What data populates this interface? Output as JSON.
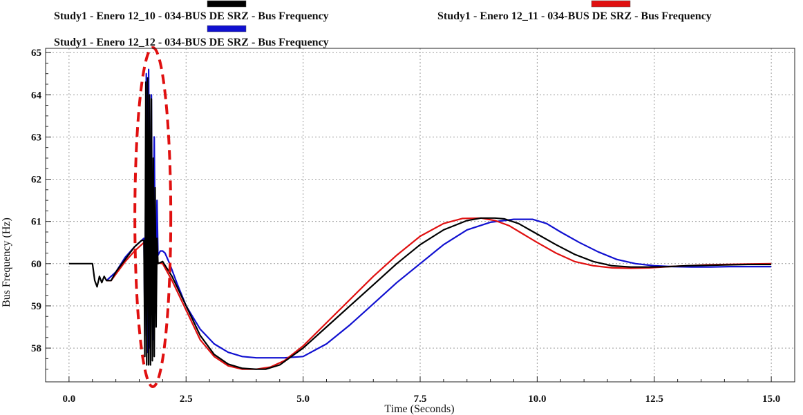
{
  "chart_data": {
    "type": "line",
    "title": "",
    "xlabel": "Time (Seconds)",
    "ylabel": "Bus Frequency (Hz)",
    "xlim": [
      -0.5,
      15.5
    ],
    "ylim": [
      57.2,
      65.1
    ],
    "xticks": [
      0.0,
      2.5,
      5.0,
      7.5,
      10.0,
      12.5,
      15.0
    ],
    "xtick_labels": [
      "0.0",
      "2.5",
      "5.0",
      "7.5",
      "10.0",
      "12.5",
      "15.0"
    ],
    "yticks": [
      58,
      59,
      60,
      61,
      62,
      63,
      64,
      65
    ],
    "ytick_labels": [
      "58",
      "59",
      "60",
      "61",
      "62",
      "63",
      "64",
      "65"
    ],
    "grid": true,
    "legend_position": "top",
    "annotation": "red dashed ellipse around oscillation region (approx. 1.6–1.95 s)",
    "series": [
      {
        "name": "Study1 - Enero 12_10 - 034-BUS DE SRZ - Bus Frequency",
        "color": "#000000",
        "x": [
          0.0,
          0.5,
          0.55,
          0.6,
          0.65,
          0.7,
          0.75,
          0.8,
          0.9,
          1.0,
          1.2,
          1.4,
          1.55,
          1.6,
          1.62,
          1.64,
          1.66,
          1.68,
          1.7,
          1.72,
          1.74,
          1.76,
          1.78,
          1.8,
          1.82,
          1.84,
          1.86,
          1.88,
          1.9,
          2.0,
          2.2,
          2.5,
          2.8,
          3.1,
          3.4,
          3.7,
          4.0,
          4.2,
          4.5,
          5.0,
          5.5,
          6.0,
          6.5,
          7.0,
          7.5,
          8.0,
          8.5,
          8.8,
          9.1,
          9.3,
          9.6,
          10.0,
          10.4,
          10.8,
          11.2,
          11.6,
          12.0,
          12.4,
          12.8,
          13.2,
          13.6,
          14.0,
          14.5,
          15.0
        ],
        "y": [
          60.0,
          60.0,
          59.6,
          59.45,
          59.7,
          59.55,
          59.7,
          59.6,
          59.6,
          59.8,
          60.1,
          60.4,
          60.55,
          60.55,
          57.8,
          64.3,
          57.6,
          64.4,
          57.6,
          64.0,
          57.6,
          63.9,
          57.7,
          62.5,
          57.8,
          61.8,
          58.5,
          60.6,
          60.0,
          60.05,
          59.7,
          59.0,
          58.3,
          57.85,
          57.62,
          57.52,
          57.5,
          57.5,
          57.6,
          58.0,
          58.5,
          59.0,
          59.5,
          60.0,
          60.45,
          60.8,
          61.02,
          61.08,
          61.08,
          61.06,
          60.95,
          60.7,
          60.45,
          60.22,
          60.05,
          59.95,
          59.92,
          59.92,
          59.93,
          59.95,
          59.96,
          59.97,
          59.98,
          59.98
        ]
      },
      {
        "name": "Study1 - Enero 12_11 - 034-BUS DE SRZ - Bus Frequency",
        "color": "#e01010",
        "x": [
          0.8,
          0.9,
          1.0,
          1.2,
          1.4,
          1.55,
          1.6,
          1.65,
          1.75,
          1.85,
          1.9,
          2.0,
          2.2,
          2.5,
          2.8,
          3.1,
          3.4,
          3.7,
          4.0,
          4.3,
          4.6,
          5.0,
          5.5,
          6.0,
          6.5,
          7.0,
          7.5,
          8.0,
          8.4,
          8.8,
          9.1,
          9.4,
          9.7,
          10.0,
          10.4,
          10.8,
          11.2,
          11.6,
          12.0,
          12.4,
          12.8,
          13.2,
          13.6,
          14.0,
          14.5,
          15.0
        ],
        "y": [
          59.6,
          59.6,
          59.75,
          60.05,
          60.3,
          60.45,
          60.5,
          60.4,
          60.0,
          60.05,
          60.02,
          60.0,
          59.6,
          58.9,
          58.2,
          57.8,
          57.58,
          57.5,
          57.5,
          57.55,
          57.7,
          58.05,
          58.6,
          59.15,
          59.7,
          60.2,
          60.65,
          60.95,
          61.07,
          61.08,
          61.02,
          60.9,
          60.7,
          60.5,
          60.25,
          60.05,
          59.95,
          59.9,
          59.89,
          59.9,
          59.93,
          59.95,
          59.97,
          59.98,
          59.99,
          60.0
        ]
      },
      {
        "name": "Study1 - Enero 12_12 - 034-BUS DE SRZ - Bus Frequency",
        "color": "#1010d0",
        "x": [
          0.8,
          1.0,
          1.2,
          1.4,
          1.5,
          1.6,
          1.62,
          1.65,
          1.68,
          1.7,
          1.73,
          1.76,
          1.79,
          1.82,
          1.85,
          1.88,
          1.9,
          1.95,
          2.0,
          2.05,
          2.15,
          2.3,
          2.5,
          2.8,
          3.1,
          3.4,
          3.7,
          4.0,
          4.3,
          4.6,
          5.0,
          5.5,
          6.0,
          6.5,
          7.0,
          7.5,
          8.0,
          8.5,
          9.0,
          9.5,
          9.9,
          10.2,
          10.5,
          10.9,
          11.3,
          11.7,
          12.1,
          12.5,
          12.9,
          13.3,
          13.7,
          14.1,
          14.5,
          15.0
        ],
        "y": [
          59.6,
          59.8,
          60.15,
          60.4,
          60.5,
          60.6,
          58.3,
          64.5,
          57.9,
          64.6,
          58.0,
          64.0,
          58.2,
          63.0,
          59.0,
          61.5,
          60.2,
          60.3,
          60.3,
          60.25,
          60.0,
          59.55,
          59.0,
          58.45,
          58.1,
          57.9,
          57.8,
          57.77,
          57.77,
          57.77,
          57.8,
          58.1,
          58.55,
          59.05,
          59.55,
          60.0,
          60.45,
          60.8,
          60.98,
          61.05,
          61.05,
          60.95,
          60.75,
          60.5,
          60.28,
          60.1,
          60.0,
          59.95,
          59.93,
          59.92,
          59.92,
          59.93,
          59.93,
          59.93
        ]
      }
    ]
  }
}
